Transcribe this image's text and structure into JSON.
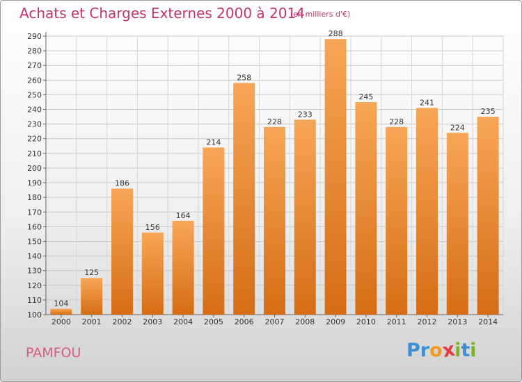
{
  "title": "Achats et Charges Externes 2000 à 2014",
  "subtitle": "(en milliers d'€)",
  "place": "PAMFOU",
  "logo": {
    "letters": [
      "P",
      "r",
      "o",
      "x",
      "i",
      "t",
      "i"
    ],
    "colors": [
      "#3a8fd6",
      "#3a8fd6",
      "#f39a1e",
      "#e23c3c",
      "#7ab51d",
      "#3a8fd6",
      "#7ab51d"
    ]
  },
  "colors": {
    "bar_light": "#f7a657",
    "bar_dark": "#d56d15",
    "title": "#c2346a"
  },
  "chart_data": {
    "type": "bar",
    "categories": [
      "2000",
      "2001",
      "2002",
      "2003",
      "2004",
      "2005",
      "2006",
      "2007",
      "2008",
      "2009",
      "2010",
      "2011",
      "2012",
      "2013",
      "2014"
    ],
    "values": [
      104,
      125,
      186,
      156,
      164,
      214,
      258,
      228,
      233,
      288,
      245,
      228,
      241,
      224,
      235
    ],
    "ylim": [
      100,
      290
    ],
    "yticks": [
      100,
      110,
      120,
      130,
      140,
      150,
      160,
      170,
      180,
      190,
      200,
      210,
      220,
      230,
      240,
      250,
      260,
      270,
      280,
      290
    ],
    "grid": true
  }
}
